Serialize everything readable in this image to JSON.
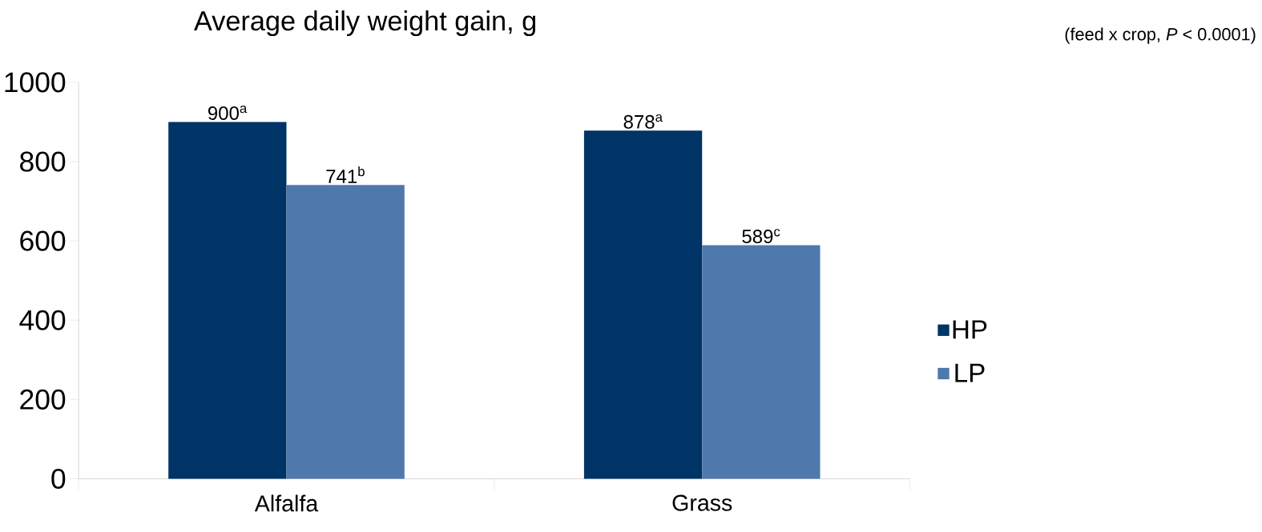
{
  "chart_data": {
    "type": "bar",
    "ylabel": "Average daily weight gain, g",
    "annotations": [
      "(feed x crop, *P* < 0.0001)"
    ],
    "categories": [
      "Alfalfa",
      "Grass"
    ],
    "series": [
      {
        "name": "HP",
        "color": "#003366",
        "values": [
          900,
          878
        ],
        "value_labels": [
          "900$^{a}$",
          "878$^{a}$"
        ]
      },
      {
        "name": "LP",
        "color": "#4f79ac",
        "values": [
          741,
          589
        ],
        "value_labels": [
          "741$^{b}$",
          "589$^{c}$"
        ]
      }
    ],
    "ylim": [
      0,
      1000
    ],
    "yticks": [
      0,
      200,
      400,
      600,
      800,
      1000
    ],
    "legend": "right"
  }
}
